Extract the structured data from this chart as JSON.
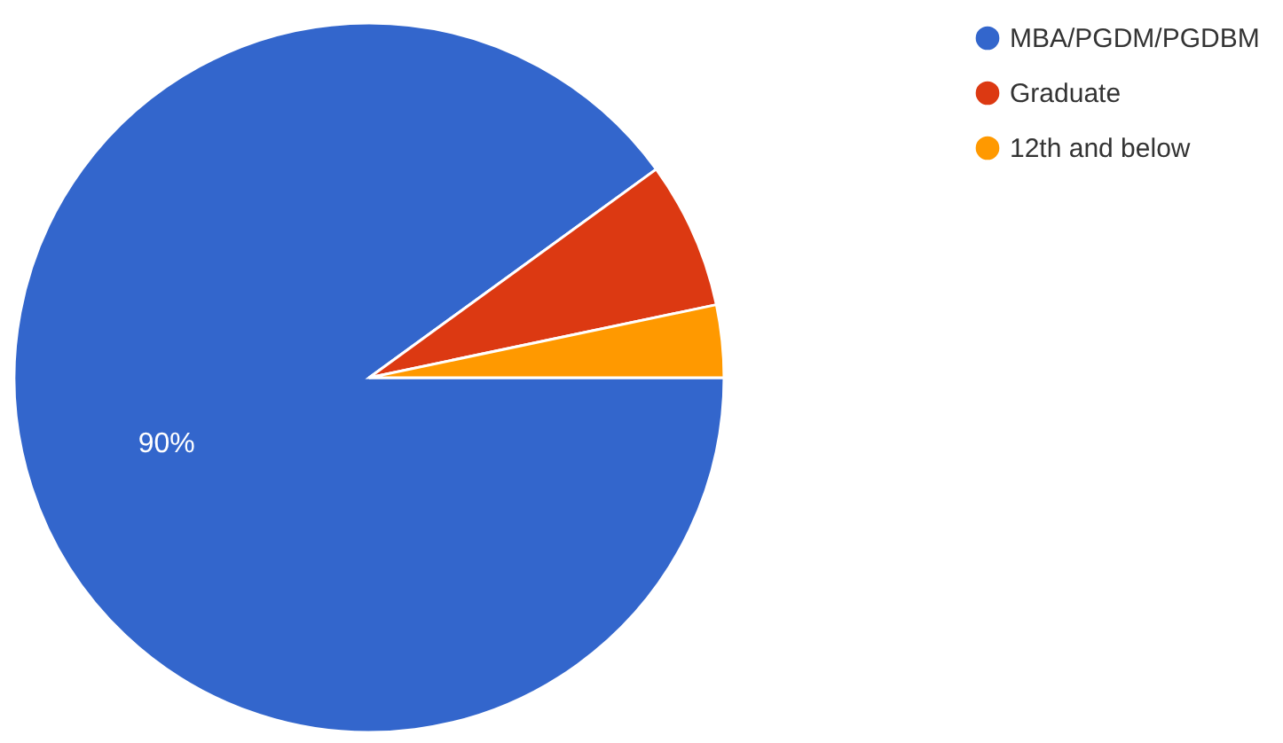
{
  "chart_data": {
    "type": "pie",
    "categories": [
      "MBA/PGDM/PGDBM",
      "Graduate",
      "12th and below"
    ],
    "values": [
      90,
      6.7,
      3.3
    ],
    "colors": [
      "#3366cc",
      "#dc3912",
      "#ff9900"
    ],
    "value_labels": [
      "90%",
      null,
      null
    ],
    "legend": "top right"
  }
}
